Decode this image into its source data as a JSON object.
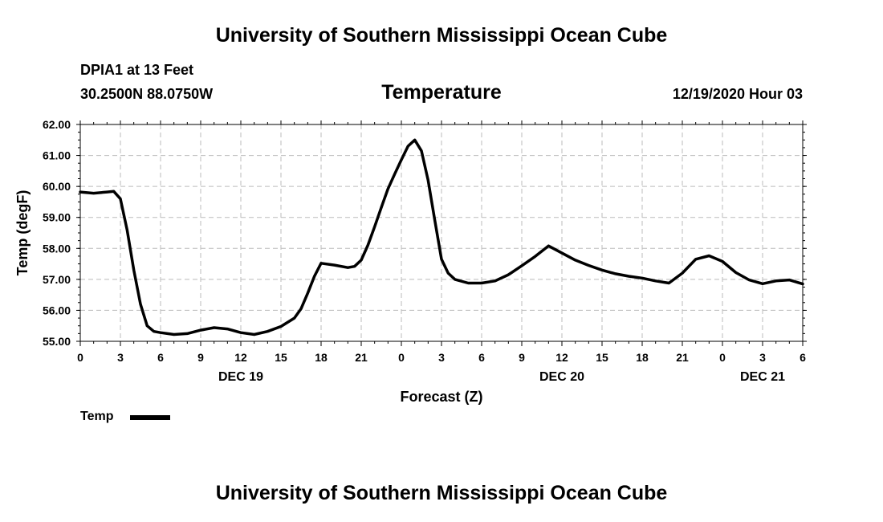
{
  "header": {
    "title": "University of Southern Mississippi Ocean Cube",
    "station": "DPIA1 at 13 Feet",
    "coords": "30.2500N 88.0750W",
    "run_time": "12/19/2020 Hour 03"
  },
  "footer": {
    "title": "University of Southern Mississippi Ocean Cube"
  },
  "legend": {
    "label": "Temp",
    "color": "#000000"
  },
  "chart_data": {
    "type": "line",
    "title": "Temperature",
    "xlabel": "Forecast (Z)",
    "ylabel": "Temp (degF)",
    "ylim": [
      55.0,
      62.0
    ],
    "y_ticks": [
      "55.00",
      "56.00",
      "57.00",
      "58.00",
      "59.00",
      "60.00",
      "61.00",
      "62.00"
    ],
    "xlim": [
      0,
      54
    ],
    "x_ticks": [
      "0",
      "3",
      "6",
      "9",
      "12",
      "15",
      "18",
      "21",
      "0",
      "3",
      "6",
      "9",
      "12",
      "15",
      "18",
      "21",
      "0",
      "3",
      "6"
    ],
    "x_tick_step_hours": 3,
    "date_labels": [
      {
        "label": "DEC 19",
        "hour": 12
      },
      {
        "label": "DEC 20",
        "hour": 36
      },
      {
        "label": "DEC 21",
        "hour": 51
      }
    ],
    "grid": true,
    "series": [
      {
        "name": "Temp",
        "x": [
          0,
          1,
          2,
          2.5,
          3,
          3.5,
          4,
          4.5,
          5,
          5.5,
          6,
          7,
          8,
          9,
          10,
          11,
          12,
          13,
          14,
          15,
          16,
          16.5,
          17,
          17.5,
          18,
          19,
          20,
          20.5,
          21,
          21.5,
          22,
          22.5,
          23,
          23.5,
          24,
          24.5,
          25,
          25.5,
          26,
          26.5,
          27,
          27.5,
          28,
          29,
          30,
          31,
          32,
          33,
          34,
          35,
          36,
          37,
          38,
          39,
          40,
          41,
          42,
          43,
          44,
          45,
          46,
          47,
          48,
          49,
          50,
          51,
          52,
          53,
          54
        ],
        "values": [
          59.82,
          59.78,
          59.82,
          59.84,
          59.6,
          58.6,
          57.3,
          56.2,
          55.5,
          55.32,
          55.28,
          55.22,
          55.25,
          55.36,
          55.44,
          55.4,
          55.28,
          55.22,
          55.32,
          55.48,
          55.75,
          56.05,
          56.55,
          57.1,
          57.52,
          57.46,
          57.38,
          57.42,
          57.62,
          58.1,
          58.7,
          59.32,
          59.92,
          60.4,
          60.86,
          61.3,
          61.5,
          61.15,
          60.2,
          58.9,
          57.65,
          57.2,
          57.0,
          56.88,
          56.88,
          56.95,
          57.15,
          57.44,
          57.74,
          58.08,
          57.85,
          57.62,
          57.45,
          57.3,
          57.18,
          57.1,
          57.04,
          56.95,
          56.88,
          57.2,
          57.65,
          57.76,
          57.58,
          57.22,
          56.98,
          56.86,
          56.95,
          56.98,
          56.85
        ]
      }
    ]
  }
}
